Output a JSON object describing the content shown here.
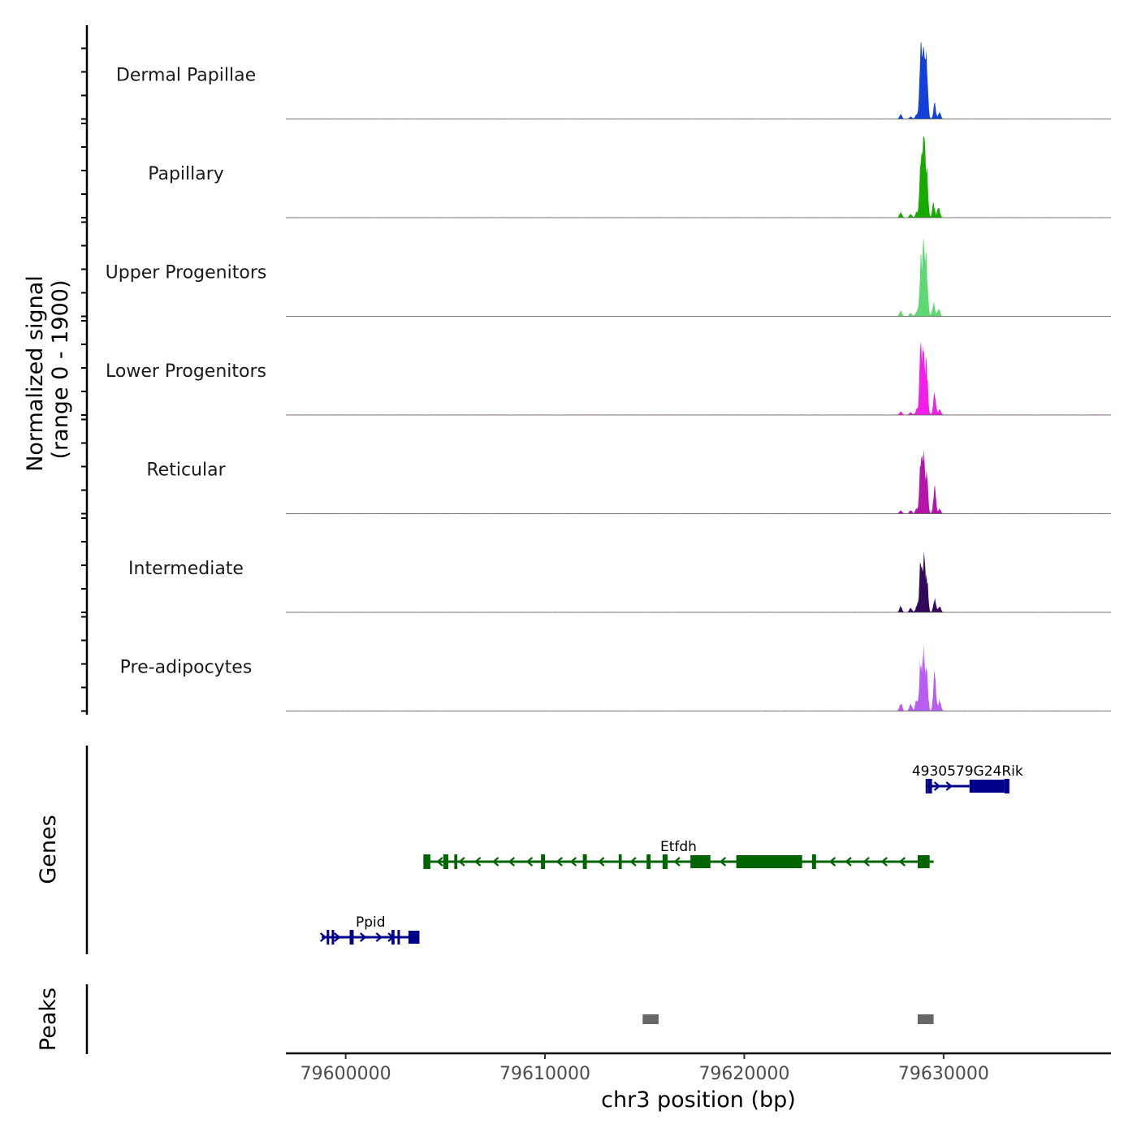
{
  "chart_data": {
    "type": "area",
    "region": {
      "chrom": "chr3",
      "start": 79597000,
      "end": 79638400
    },
    "signal": {
      "ylabel_line1": "Normalized signal",
      "ylabel_line2": "(range 0 - 1900)",
      "range": [
        0,
        1900
      ],
      "tracks": [
        {
          "name": "Dermal Papillae",
          "color": "#1240d8",
          "noise": 0.004,
          "peaks": [
            [
              79627850,
              0.05
            ],
            [
              79628350,
              0.03
            ],
            [
              79628650,
              0.06
            ],
            [
              79628850,
              0.7
            ],
            [
              79629000,
              0.85
            ],
            [
              79629150,
              0.62
            ],
            [
              79629550,
              0.18
            ],
            [
              79629800,
              0.08
            ]
          ]
        },
        {
          "name": "Papillary",
          "color": "#18aa00",
          "noise": 0.004,
          "peaks": [
            [
              79627850,
              0.07
            ],
            [
              79628350,
              0.04
            ],
            [
              79628650,
              0.07
            ],
            [
              79628850,
              0.66
            ],
            [
              79629000,
              0.83
            ],
            [
              79629150,
              0.58
            ],
            [
              79629500,
              0.17
            ],
            [
              79629750,
              0.13
            ]
          ]
        },
        {
          "name": "Upper Progenitors",
          "color": "#5ed873",
          "noise": 0.004,
          "peaks": [
            [
              79627850,
              0.07
            ],
            [
              79628350,
              0.04
            ],
            [
              79628650,
              0.06
            ],
            [
              79628850,
              0.62
            ],
            [
              79629000,
              0.87
            ],
            [
              79629150,
              0.58
            ],
            [
              79629500,
              0.17
            ],
            [
              79629750,
              0.1
            ]
          ]
        },
        {
          "name": "Lower Progenitors",
          "color": "#f020e8",
          "noise": 0.006,
          "peaks": [
            [
              79627850,
              0.04
            ],
            [
              79628350,
              0.03
            ],
            [
              79628650,
              0.06
            ],
            [
              79628850,
              0.7
            ],
            [
              79629000,
              0.78
            ],
            [
              79629150,
              0.56
            ],
            [
              79629550,
              0.28
            ],
            [
              79629800,
              0.06
            ]
          ]
        },
        {
          "name": "Reticular",
          "color": "#b215a8",
          "noise": 0.004,
          "peaks": [
            [
              79627850,
              0.04
            ],
            [
              79628350,
              0.04
            ],
            [
              79628650,
              0.06
            ],
            [
              79628850,
              0.61
            ],
            [
              79629000,
              0.63
            ],
            [
              79629150,
              0.48
            ],
            [
              79629550,
              0.3
            ],
            [
              79629800,
              0.05
            ]
          ]
        },
        {
          "name": "Intermediate",
          "color": "#330a5a",
          "noise": 0.004,
          "peaks": [
            [
              79627850,
              0.07
            ],
            [
              79628350,
              0.06
            ],
            [
              79628650,
              0.08
            ],
            [
              79628850,
              0.62
            ],
            [
              79629000,
              0.65
            ],
            [
              79629150,
              0.45
            ],
            [
              79629550,
              0.17
            ],
            [
              79629800,
              0.07
            ]
          ]
        },
        {
          "name": "Pre-adipocytes",
          "color": "#b85df2",
          "noise": 0.007,
          "peaks": [
            [
              79627850,
              0.1
            ],
            [
              79628350,
              0.09
            ],
            [
              79628650,
              0.14
            ],
            [
              79628850,
              0.57
            ],
            [
              79629000,
              0.68
            ],
            [
              79629150,
              0.5
            ],
            [
              79629550,
              0.45
            ],
            [
              79629800,
              0.13
            ]
          ]
        }
      ]
    },
    "genes": {
      "label": "Genes",
      "items": [
        {
          "name": "4930579G24Rik",
          "strand": "+",
          "color": "#00008b",
          "row": 0,
          "start": 79629100,
          "end": 79633300,
          "exons": [
            [
              79629100,
              79629180
            ],
            [
              79629230,
              79629420
            ],
            [
              79631300,
              79633050
            ],
            [
              79633050,
              79633300
            ]
          ],
          "arrows": [
            79629700,
            79630300
          ]
        },
        {
          "name": "Etfdh",
          "strand": "-",
          "color": "#006400",
          "row": 1,
          "start": 79603900,
          "end": 79629500,
          "exons": [
            [
              79603900,
              79604250
            ],
            [
              79604900,
              79605150
            ],
            [
              79605450,
              79605600
            ],
            [
              79609800,
              79610000
            ],
            [
              79611900,
              79612100
            ],
            [
              79613700,
              79613850
            ],
            [
              79615100,
              79615300
            ],
            [
              79615900,
              79616150
            ],
            [
              79617300,
              79618300
            ],
            [
              79619600,
              79622900
            ],
            [
              79623400,
              79623600
            ],
            [
              79628700,
              79629300
            ]
          ],
          "arrows": [
            79604700,
            79605800,
            79606600,
            79607500,
            79608300,
            79609200,
            79610700,
            79611400,
            79612800,
            79614400,
            79616600,
            79618900,
            79624400,
            79625200,
            79626100,
            79627000,
            79627900
          ]
        },
        {
          "name": "Ppid",
          "strand": "+",
          "color": "#00008b",
          "row": 2,
          "start": 79598800,
          "end": 79603700,
          "exons": [
            [
              79599050,
              79599150
            ],
            [
              79599300,
              79599400
            ],
            [
              79600200,
              79600400
            ],
            [
              79602300,
              79602450
            ],
            [
              79602600,
              79602700
            ],
            [
              79603150,
              79603700
            ]
          ],
          "arrows": [
            79598900,
            79599600,
            79600900,
            79601700,
            79602300
          ]
        }
      ]
    },
    "peaks": {
      "label": "Peaks",
      "color": "#666666",
      "items": [
        [
          79614900,
          79615700
        ],
        [
          79628700,
          79629500
        ]
      ]
    },
    "x_axis": {
      "title": "chr3 position (bp)",
      "ticks": [
        79600000,
        79610000,
        79620000,
        79630000
      ],
      "tick_labels": [
        "79600000",
        "79610000",
        "79620000",
        "79630000"
      ]
    }
  }
}
